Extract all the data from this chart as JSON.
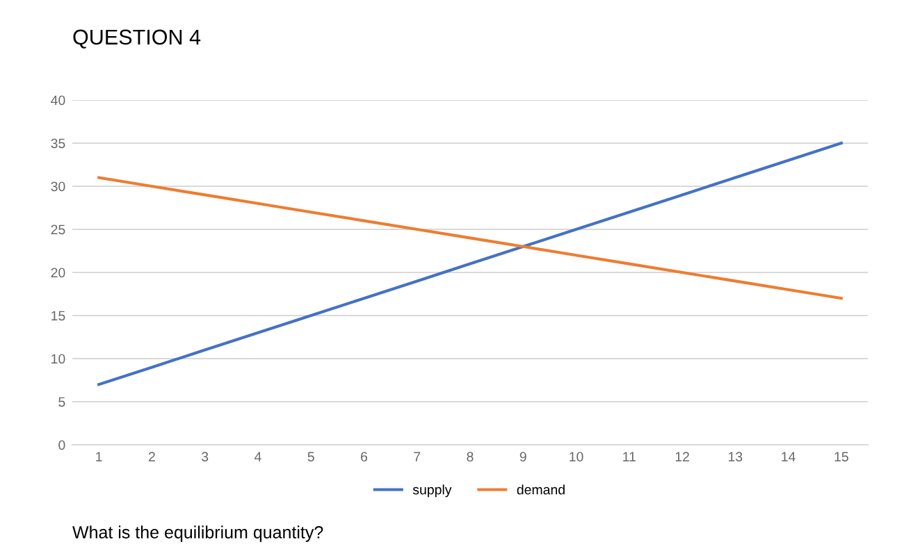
{
  "chart_data": {
    "type": "line",
    "title": "QUESTION 4",
    "annotations": [
      "What is the equilibrium quantity?"
    ],
    "categories": [
      "1",
      "2",
      "3",
      "4",
      "5",
      "6",
      "7",
      "8",
      "9",
      "10",
      "11",
      "12",
      "13",
      "14",
      "15"
    ],
    "series": [
      {
        "name": "supply",
        "color": "#4472c4",
        "values": [
          7,
          9,
          11,
          13,
          15,
          17,
          19,
          21,
          23,
          25,
          27,
          29,
          31,
          33,
          35
        ]
      },
      {
        "name": "demand",
        "color": "#ed7d31",
        "values": [
          31,
          30,
          29,
          28,
          27,
          26,
          25,
          24,
          23,
          22,
          21,
          20,
          19,
          18,
          17
        ]
      }
    ],
    "ylim": [
      0,
      40
    ],
    "yticks": [
      0,
      5,
      10,
      15,
      20,
      25,
      30,
      35,
      40
    ],
    "grid": "y",
    "legend": "bottom",
    "marker": "none",
    "line_style": "solid"
  }
}
